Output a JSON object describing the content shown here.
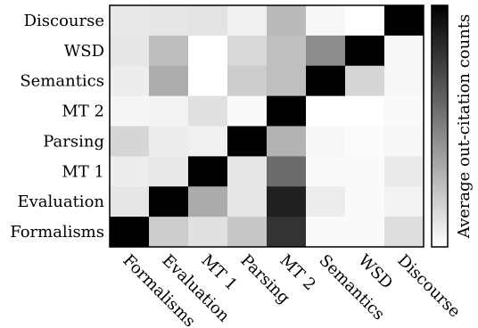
{
  "chart_data": {
    "type": "heatmap",
    "title": "",
    "xlabel": "",
    "ylabel": "",
    "x_categories": [
      "Formalisms",
      "Evaluation",
      "MT 1",
      "Parsing",
      "MT 2",
      "Semantics",
      "WSD",
      "Discourse"
    ],
    "y_categories": [
      "Discourse",
      "WSD",
      "Semantics",
      "MT 2",
      "Parsing",
      "MT 1",
      "Evaluation",
      "Formalisms"
    ],
    "values": [
      [
        0.09,
        0.1,
        0.11,
        0.06,
        0.27,
        0.03,
        0.0,
        1.0
      ],
      [
        0.1,
        0.26,
        0.0,
        0.15,
        0.25,
        0.45,
        1.0,
        0.03
      ],
      [
        0.07,
        0.32,
        0.0,
        0.2,
        0.25,
        1.0,
        0.16,
        0.03
      ],
      [
        0.04,
        0.05,
        0.12,
        0.02,
        1.0,
        0.0,
        0.0,
        0.02
      ],
      [
        0.16,
        0.07,
        0.06,
        1.0,
        0.3,
        0.03,
        0.01,
        0.03
      ],
      [
        0.07,
        0.09,
        1.0,
        0.1,
        0.58,
        0.02,
        0.02,
        0.08
      ],
      [
        0.1,
        1.0,
        0.33,
        0.1,
        0.87,
        0.07,
        0.02,
        0.05
      ],
      [
        1.0,
        0.2,
        0.12,
        0.22,
        0.8,
        0.02,
        0.02,
        0.13
      ]
    ],
    "value_range": [
      0,
      1
    ],
    "colormap": {
      "low": "#ffffff",
      "high": "#000000"
    },
    "colorbar": {
      "label": "Average out-citation counts",
      "show_ticks": false
    },
    "grid": false,
    "x_tick_rotation": 45
  }
}
